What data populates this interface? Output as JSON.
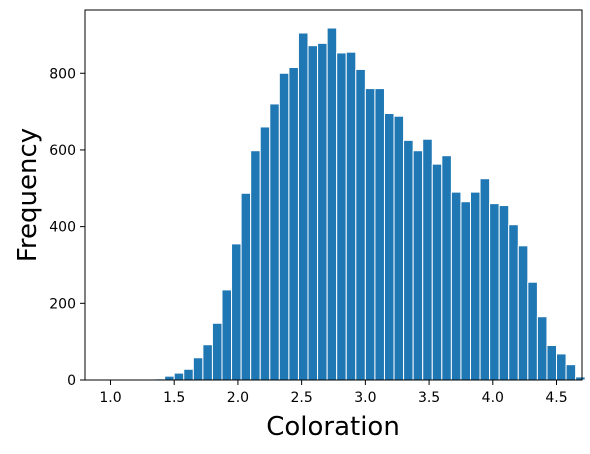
{
  "chart_data": {
    "type": "bar",
    "title": "",
    "xlabel": "Coloration",
    "ylabel": "Frequency",
    "xlim": [
      0.8,
      4.7
    ],
    "ylim": [
      0,
      965
    ],
    "x_ticks": [
      "1.0",
      "1.5",
      "2.0",
      "2.5",
      "3.0",
      "3.5",
      "4.0",
      "4.5"
    ],
    "y_ticks": [
      "0",
      "200",
      "400",
      "600",
      "800"
    ],
    "bin_start": 0.9,
    "bin_width": 0.075,
    "bar_color": "#1f77b4",
    "bar_edge_color": "#ffffff",
    "values": [
      0,
      0,
      0,
      0,
      0,
      0,
      3,
      10,
      18,
      28,
      58,
      92,
      148,
      235,
      355,
      487,
      598,
      660,
      720,
      800,
      815,
      905,
      872,
      878,
      918,
      853,
      855,
      810,
      760,
      760,
      695,
      688,
      625,
      598,
      628,
      563,
      585,
      490,
      465,
      490,
      525,
      460,
      455,
      405,
      350,
      255,
      165,
      90,
      68,
      40,
      8,
      0
    ]
  }
}
